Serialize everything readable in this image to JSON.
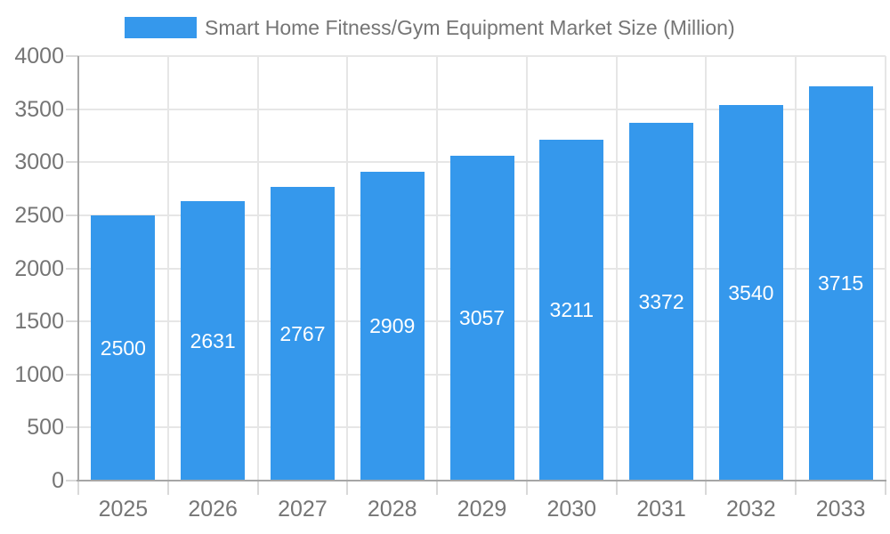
{
  "colors": {
    "bar": "#3598EC",
    "grid": "#e6e6e6",
    "axis_line": "#a6a6a6",
    "tick": "#d9d9d9",
    "axis_label": "#757575",
    "bar_label": "#ffffff",
    "background": "#ffffff"
  },
  "legend": {
    "label": "Smart Home Fitness/Gym Equipment Market Size (Million)"
  },
  "chart_data": {
    "type": "bar",
    "title": "Smart Home Fitness/Gym Equipment Market Size (Million)",
    "categories": [
      "2025",
      "2026",
      "2027",
      "2028",
      "2029",
      "2030",
      "2031",
      "2032",
      "2033"
    ],
    "values": [
      2500,
      2631,
      2767,
      2909,
      3057,
      3211,
      3372,
      3540,
      3715
    ],
    "xlabel": "",
    "ylabel": "",
    "ylim": [
      0,
      4000
    ],
    "ytick_step": 500,
    "yticks": [
      0,
      500,
      1000,
      1500,
      2000,
      2500,
      3000,
      3500,
      4000
    ],
    "grid": true,
    "legend_position": "top",
    "bar_label_position": "inside-middle"
  }
}
